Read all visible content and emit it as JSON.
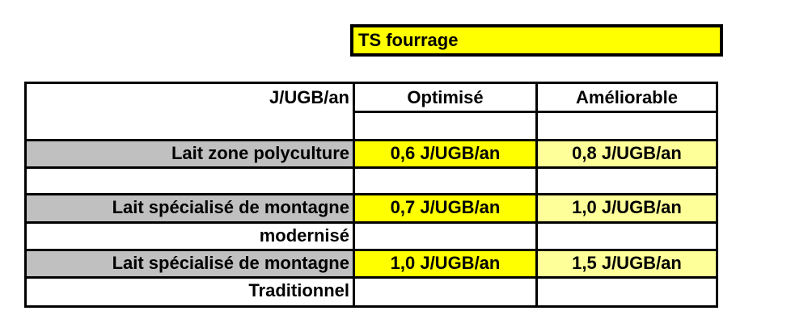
{
  "title": "TS fourrage",
  "table": {
    "corner_label": "J/UGB/an",
    "col_optimise": "Optimisé",
    "col_ameliorable": "Améliorable",
    "rows": [
      {
        "label": "Lait zone polyculture",
        "label_cont": "",
        "optimise": "0,6 J/UGB/an",
        "ameliorable": "0,8 J/UGB/an"
      },
      {
        "label": "Lait spécialisé de montagne",
        "label_cont": "modernisé",
        "optimise": "0,7 J/UGB/an",
        "ameliorable": "1,0 J/UGB/an"
      },
      {
        "label": "Lait spécialisé de montagne",
        "label_cont": "Traditionnel",
        "optimise": "1,0 J/UGB/an",
        "ameliorable": "1,5 J/UGB/an"
      }
    ]
  },
  "colors": {
    "header_yellow": "#ffff00",
    "optimise_fill": "#ffff00",
    "ameliorable_fill": "#ffff99",
    "label_fill": "#c0c0c0"
  }
}
